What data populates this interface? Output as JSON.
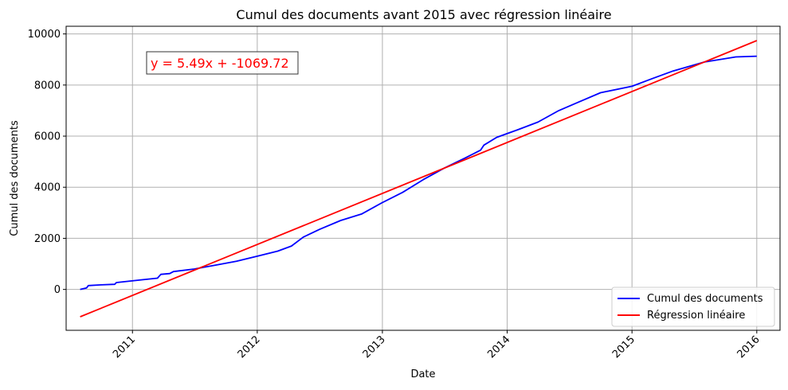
{
  "chart_data": {
    "type": "line",
    "title": "Cumul des documents avant 2015 avec régression linéaire",
    "xlabel": "Date",
    "ylabel": "Cumul des documents",
    "xlim": [
      "2010-06-21",
      "2016-03-09"
    ],
    "ylim": [
      -1600,
      10300
    ],
    "grid": true,
    "legend_position": "lower-right",
    "x_ticks": [
      "2011",
      "2012",
      "2013",
      "2014",
      "2015",
      "2016"
    ],
    "y_ticks": [
      "0",
      "2000",
      "4000",
      "6000",
      "8000",
      "10000"
    ],
    "annotation": {
      "text": "y = 5.49x + -1069.72",
      "color": "#ff0000",
      "position": "top-left"
    },
    "series": [
      {
        "name": "Cumul des documents",
        "color": "#0000ff",
        "points": [
          {
            "x": "2010-08-01",
            "y": 0
          },
          {
            "x": "2010-08-20",
            "y": 60
          },
          {
            "x": "2010-08-25",
            "y": 150
          },
          {
            "x": "2010-10-01",
            "y": 180
          },
          {
            "x": "2010-11-10",
            "y": 200
          },
          {
            "x": "2010-11-15",
            "y": 270
          },
          {
            "x": "2011-02-01",
            "y": 380
          },
          {
            "x": "2011-03-15",
            "y": 440
          },
          {
            "x": "2011-03-25",
            "y": 590
          },
          {
            "x": "2011-04-20",
            "y": 620
          },
          {
            "x": "2011-05-01",
            "y": 700
          },
          {
            "x": "2011-07-01",
            "y": 800
          },
          {
            "x": "2011-09-01",
            "y": 950
          },
          {
            "x": "2011-11-01",
            "y": 1100
          },
          {
            "x": "2012-01-01",
            "y": 1300
          },
          {
            "x": "2012-03-01",
            "y": 1500
          },
          {
            "x": "2012-04-10",
            "y": 1700
          },
          {
            "x": "2012-05-15",
            "y": 2050
          },
          {
            "x": "2012-07-01",
            "y": 2350
          },
          {
            "x": "2012-09-01",
            "y": 2700
          },
          {
            "x": "2012-11-01",
            "y": 2950
          },
          {
            "x": "2013-01-01",
            "y": 3400
          },
          {
            "x": "2013-03-01",
            "y": 3800
          },
          {
            "x": "2013-05-01",
            "y": 4300
          },
          {
            "x": "2013-07-01",
            "y": 4750
          },
          {
            "x": "2013-09-01",
            "y": 5150
          },
          {
            "x": "2013-10-15",
            "y": 5450
          },
          {
            "x": "2013-10-25",
            "y": 5650
          },
          {
            "x": "2013-12-01",
            "y": 5950
          },
          {
            "x": "2014-02-01",
            "y": 6250
          },
          {
            "x": "2014-04-01",
            "y": 6550
          },
          {
            "x": "2014-06-01",
            "y": 7000
          },
          {
            "x": "2014-08-01",
            "y": 7350
          },
          {
            "x": "2014-10-01",
            "y": 7700
          },
          {
            "x": "2015-01-01",
            "y": 7950
          },
          {
            "x": "2015-03-01",
            "y": 8250
          },
          {
            "x": "2015-05-01",
            "y": 8550
          },
          {
            "x": "2015-08-01",
            "y": 8900
          },
          {
            "x": "2015-11-01",
            "y": 9100
          },
          {
            "x": "2016-01-01",
            "y": 9130
          }
        ]
      },
      {
        "name": "Régression linéaire",
        "color": "#ff0000",
        "points": [
          {
            "x": "2010-08-01",
            "y": -1070
          },
          {
            "x": "2016-01-01",
            "y": 9740
          }
        ]
      }
    ]
  }
}
